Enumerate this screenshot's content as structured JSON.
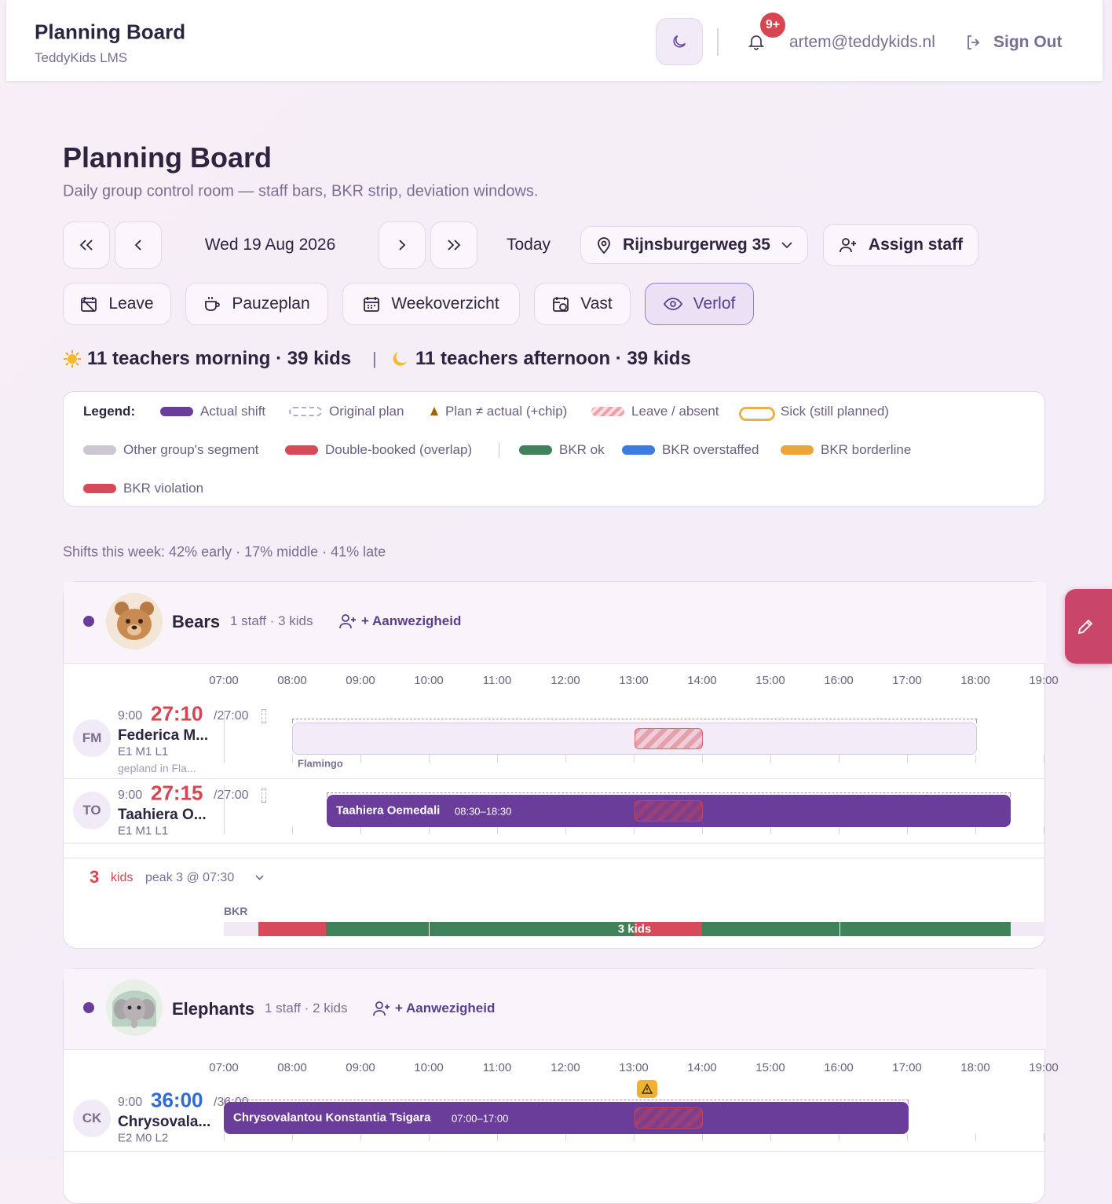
{
  "header": {
    "title": "Planning Board",
    "subtitle": "TeddyKids LMS",
    "notification_badge": "9+",
    "user_email": "artem@teddykids.nl",
    "sign_out": "Sign Out"
  },
  "page": {
    "title": "Planning Board",
    "subtitle": "Daily group control room — staff bars, BKR strip, deviation windows."
  },
  "toolbar": {
    "date": "Wed 19 Aug 2026",
    "today": "Today",
    "location": "Rijnsburgerweg 35",
    "assign_staff": "Assign staff"
  },
  "views": [
    "Leave",
    "Pauzeplan",
    "Weekoverzicht",
    "Vast",
    "Verlof"
  ],
  "summary": {
    "morning": "11 teachers morning · 39 kids",
    "separator": "|",
    "afternoon": "11 teachers afternoon · 39 kids"
  },
  "legend": {
    "label": "Legend:",
    "items": [
      "Actual shift",
      "Original plan",
      "Plan ≠ actual (+chip)",
      "Leave / absent",
      "Sick (still planned)",
      "Other group's segment",
      "Double-booked (overlap)",
      "BKR ok",
      "BKR overstaffed",
      "BKR borderline",
      "BKR violation"
    ]
  },
  "shift_stats": "Shifts this week: 42% early · 17% middle · 41% late",
  "timeline": {
    "hours": [
      "07:00",
      "08:00",
      "09:00",
      "10:00",
      "11:00",
      "12:00",
      "13:00",
      "14:00",
      "15:00",
      "16:00",
      "17:00",
      "18:00",
      "19:00"
    ]
  },
  "groups": [
    {
      "name": "Bears",
      "meta": "1 staff · 3 kids",
      "action": "+ Aanwezigheid",
      "staff": [
        {
          "initials": "FM",
          "start": "9:00",
          "hours": "27:10",
          "contract": "/27:00",
          "name": "Federica M...",
          "levels": "E1 M1 L1",
          "note": "gepland in Fla...",
          "segment_label": "Flamingo"
        },
        {
          "initials": "TO",
          "start": "9:00",
          "hours": "27:15",
          "contract": "/27:00",
          "name": "Taahiera O...",
          "levels": "E1 M1 L1",
          "bar_label": "Taahiera Oemedali",
          "bar_time": "08:30–18:30"
        }
      ],
      "kids": {
        "count": "3",
        "unit": "kids",
        "peak": "peak 3 @ 07:30"
      },
      "bkr": {
        "label": "BKR",
        "center_label": "3 kids"
      }
    },
    {
      "name": "Elephants",
      "meta": "1 staff · 2 kids",
      "action": "+ Aanwezigheid",
      "staff": [
        {
          "initials": "CK",
          "start": "9:00",
          "hours": "36:00",
          "contract": "/36:00",
          "name": "Chrysovala...",
          "levels": "E2 M0 L2",
          "bar_label": "Chrysovalantou Konstantia Tsigara",
          "bar_time": "07:00–17:00"
        }
      ]
    }
  ]
}
